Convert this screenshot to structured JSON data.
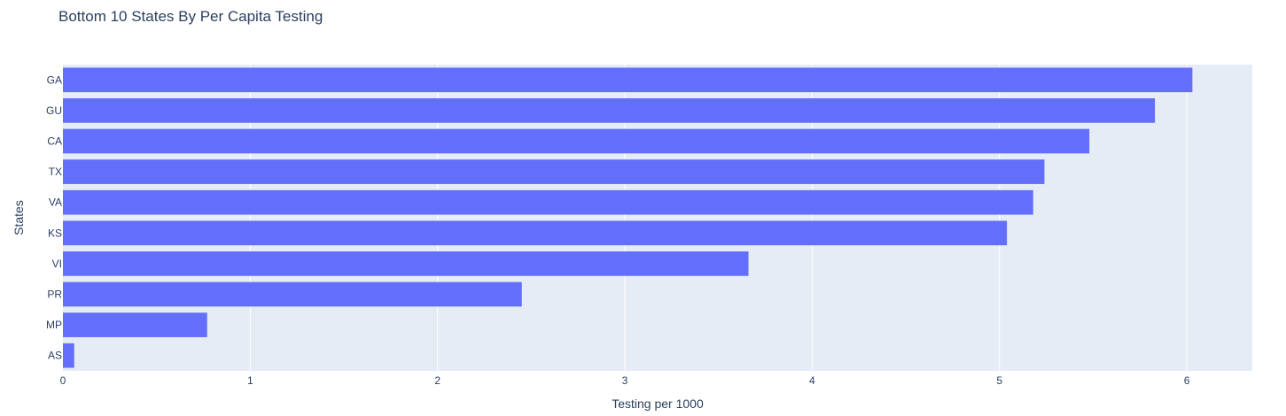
{
  "chart_data": {
    "type": "bar",
    "orientation": "horizontal",
    "title": "Bottom 10 States By Per Capita Testing",
    "xlabel": "Testing per 1000",
    "ylabel": "States",
    "categories": [
      "GA",
      "GU",
      "CA",
      "TX",
      "VA",
      "KS",
      "VI",
      "PR",
      "MP",
      "AS"
    ],
    "values": [
      6.03,
      5.83,
      5.48,
      5.24,
      5.18,
      5.04,
      3.66,
      2.45,
      0.77,
      0.06
    ],
    "xlim": [
      0,
      6.35
    ],
    "xticks": [
      "0",
      "1",
      "2",
      "3",
      "4",
      "5",
      "6"
    ],
    "grid": true,
    "colors": {
      "bar": "#636efa",
      "plot_bg": "#e5ecf6",
      "grid": "#ffffff",
      "text": "#2a3f5f"
    }
  }
}
